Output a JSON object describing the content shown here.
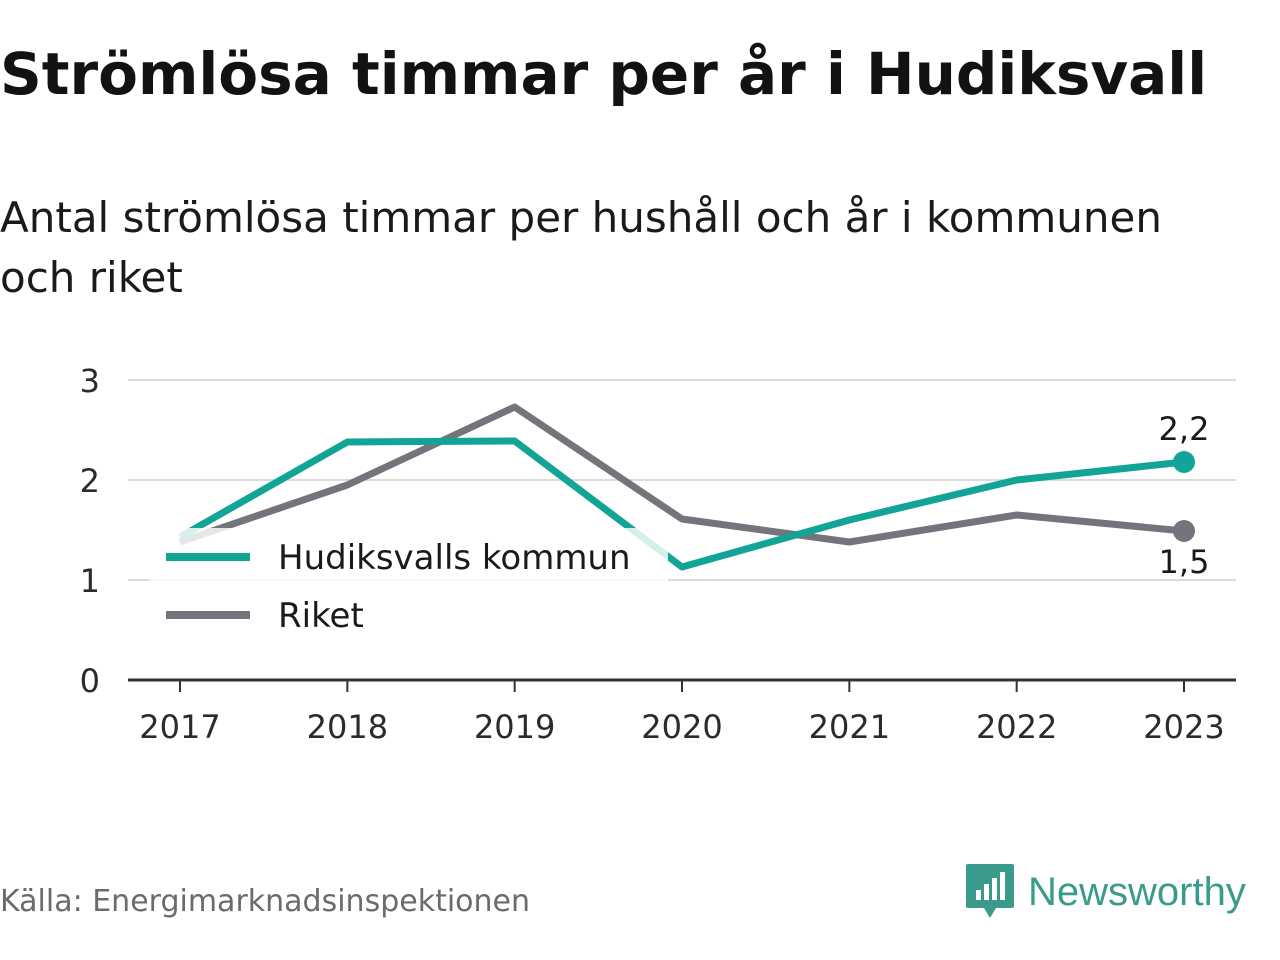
{
  "title": "Strömlösa timmar per år i Hudiksvall",
  "subtitle": "Antal strömlösa timmar per hushåll och år i kommunen och riket",
  "source": "Källa: Energimarknadsinspektionen",
  "brand": {
    "name": "Newsworthy",
    "icon": "newsworthy-logo-icon"
  },
  "colors": {
    "kommun": "#12a496",
    "riket": "#75737b",
    "grid": "#dcdcdc",
    "axis": "#333333"
  },
  "chart_data": {
    "type": "line",
    "title": "Strömlösa timmar per år i Hudiksvall",
    "xlabel": "",
    "ylabel": "",
    "x": [
      2017,
      2018,
      2019,
      2020,
      2021,
      2022,
      2023
    ],
    "ylim": [
      0,
      3
    ],
    "yticks": [
      0,
      1,
      2,
      3
    ],
    "grid": true,
    "legend": "bottom-left",
    "series": [
      {
        "name": "Hudiksvalls kommun",
        "key": "kommun",
        "values": [
          1.43,
          2.38,
          2.39,
          1.13,
          1.6,
          2.0,
          2.18
        ],
        "end_label": "2,2"
      },
      {
        "name": "Riket",
        "key": "riket",
        "values": [
          1.38,
          1.95,
          2.73,
          1.61,
          1.38,
          1.65,
          1.49
        ],
        "end_label": "1,5"
      }
    ]
  }
}
